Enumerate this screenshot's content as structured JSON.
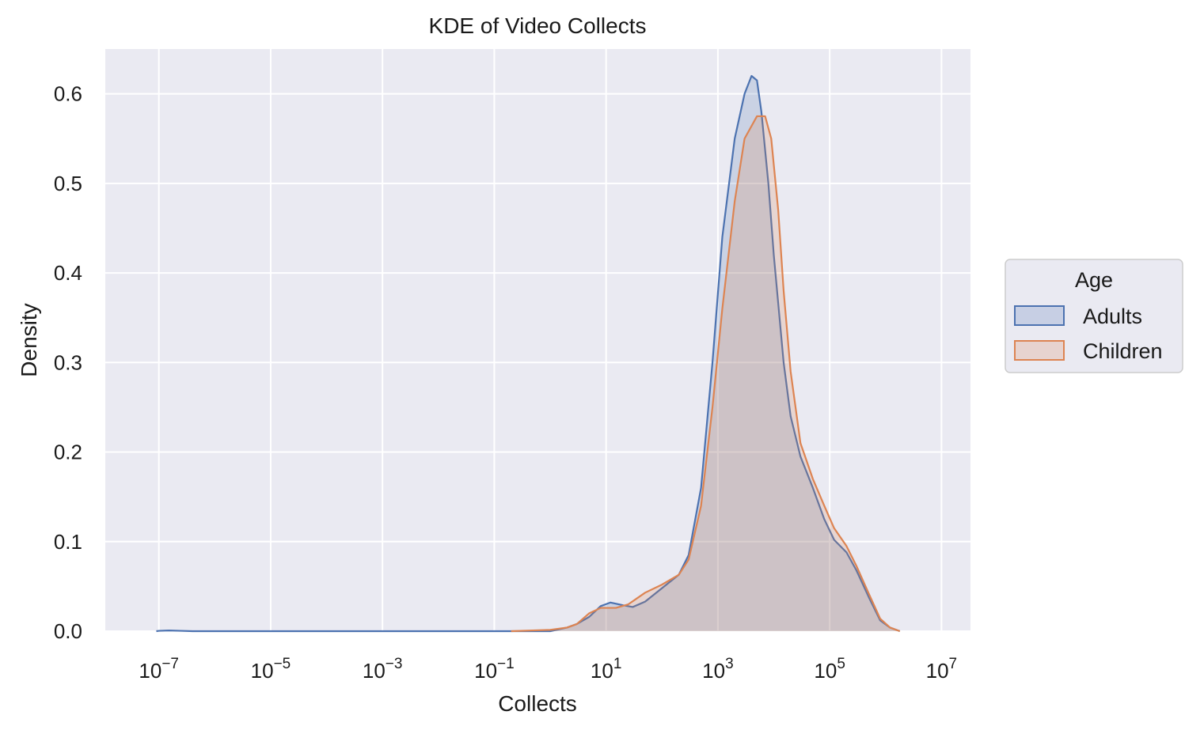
{
  "chart_data": {
    "type": "area",
    "title": "KDE of Video Collects",
    "xlabel": "Collects",
    "ylabel": "Density",
    "xscale": "log",
    "xlim": [
      1.1e-08,
      33000000
    ],
    "ylim": [
      0,
      0.65
    ],
    "grid": true,
    "background": "#eaeaf2",
    "x_ticks": [
      {
        "value": 1e-07,
        "base": "10",
        "exp": "−7"
      },
      {
        "value": 1e-05,
        "base": "10",
        "exp": "−5"
      },
      {
        "value": 0.001,
        "base": "10",
        "exp": "−3"
      },
      {
        "value": 0.1,
        "base": "10",
        "exp": "−1"
      },
      {
        "value": 10,
        "base": "10",
        "exp": "1"
      },
      {
        "value": 1000,
        "base": "10",
        "exp": "3"
      },
      {
        "value": 100000,
        "base": "10",
        "exp": "5"
      },
      {
        "value": 10000000,
        "base": "10",
        "exp": "7"
      }
    ],
    "y_ticks": [
      {
        "value": 0.0,
        "label": "0.0"
      },
      {
        "value": 0.1,
        "label": "0.1"
      },
      {
        "value": 0.2,
        "label": "0.2"
      },
      {
        "value": 0.3,
        "label": "0.3"
      },
      {
        "value": 0.4,
        "label": "0.4"
      },
      {
        "value": 0.5,
        "label": "0.5"
      },
      {
        "value": 0.6,
        "label": "0.6"
      }
    ],
    "legend": {
      "title": "Age",
      "placement": "right"
    },
    "series": [
      {
        "name": "Adults",
        "color": "#4c72b0",
        "points": [
          [
            9e-08,
            0
          ],
          [
            1e-07,
            0.0004
          ],
          [
            1.5e-07,
            0.0008
          ],
          [
            2.5e-07,
            0.0004
          ],
          [
            4e-07,
            0
          ],
          [
            1,
            0
          ],
          [
            2,
            0.004
          ],
          [
            3,
            0.008
          ],
          [
            5,
            0.016
          ],
          [
            8,
            0.028
          ],
          [
            12,
            0.032
          ],
          [
            20,
            0.029
          ],
          [
            30,
            0.027
          ],
          [
            50,
            0.033
          ],
          [
            100,
            0.048
          ],
          [
            200,
            0.063
          ],
          [
            300,
            0.085
          ],
          [
            500,
            0.16
          ],
          [
            800,
            0.3
          ],
          [
            1200,
            0.44
          ],
          [
            2000,
            0.55
          ],
          [
            3000,
            0.6
          ],
          [
            4000,
            0.62
          ],
          [
            5000,
            0.615
          ],
          [
            6000,
            0.58
          ],
          [
            8000,
            0.5
          ],
          [
            10000,
            0.42
          ],
          [
            15000,
            0.3
          ],
          [
            20000,
            0.24
          ],
          [
            30000,
            0.195
          ],
          [
            50000,
            0.16
          ],
          [
            80000,
            0.125
          ],
          [
            120000,
            0.102
          ],
          [
            200000,
            0.088
          ],
          [
            300000,
            0.068
          ],
          [
            500000,
            0.038
          ],
          [
            800000,
            0.012
          ],
          [
            1200000,
            0.004
          ],
          [
            1800000,
            0
          ]
        ]
      },
      {
        "name": "Children",
        "color": "#dd8452",
        "points": [
          [
            0.2,
            0
          ],
          [
            1,
            0.0015
          ],
          [
            2,
            0.004
          ],
          [
            3,
            0.008
          ],
          [
            5,
            0.02
          ],
          [
            8,
            0.026
          ],
          [
            15,
            0.026
          ],
          [
            25,
            0.03
          ],
          [
            50,
            0.043
          ],
          [
            100,
            0.052
          ],
          [
            200,
            0.063
          ],
          [
            300,
            0.08
          ],
          [
            500,
            0.14
          ],
          [
            800,
            0.25
          ],
          [
            1200,
            0.36
          ],
          [
            2000,
            0.48
          ],
          [
            3000,
            0.55
          ],
          [
            5000,
            0.575
          ],
          [
            7000,
            0.575
          ],
          [
            9000,
            0.55
          ],
          [
            12000,
            0.47
          ],
          [
            15000,
            0.38
          ],
          [
            20000,
            0.29
          ],
          [
            30000,
            0.21
          ],
          [
            50000,
            0.17
          ],
          [
            80000,
            0.14
          ],
          [
            120000,
            0.115
          ],
          [
            200000,
            0.095
          ],
          [
            300000,
            0.073
          ],
          [
            500000,
            0.042
          ],
          [
            800000,
            0.014
          ],
          [
            1200000,
            0.004
          ],
          [
            1800000,
            0
          ]
        ]
      }
    ]
  }
}
